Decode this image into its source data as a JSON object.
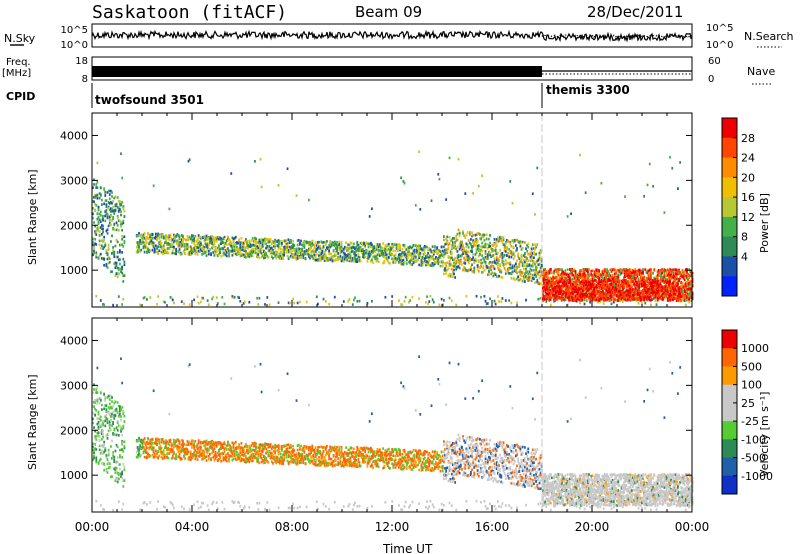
{
  "header": {
    "station": "Saskatoon (fitACF)",
    "beam": "Beam 09",
    "date": "28/Dec/2011"
  },
  "strip_labels": {
    "nsky": "N.Sky",
    "nsky_ticks": [
      "10^5",
      "10^0"
    ],
    "freq": "Freq.",
    "freq_unit": "[MHz]",
    "freq_ticks": [
      "18",
      "8"
    ],
    "cpid": "CPID",
    "nsearch": "N.Search",
    "nsearch_ticks": [
      "10^5",
      "10^0"
    ],
    "nave": "Nave",
    "nave_ticks": [
      "60",
      "0"
    ]
  },
  "cpid_segments": [
    {
      "name": "twofsound 3501",
      "start_hour": 0,
      "end_hour": 18
    },
    {
      "name": "themis 3300",
      "start_hour": 18,
      "end_hour": 24
    }
  ],
  "colors": {
    "power_scale": [
      "#0022ff",
      "#1c4fa8",
      "#2e8b57",
      "#44b04a",
      "#b8c832",
      "#f0c000",
      "#ff8c00",
      "#ff4500",
      "#ee0000"
    ],
    "velocity_scale": [
      "#1030c8",
      "#2060a8",
      "#2e8b57",
      "#55cc33",
      "#c8c8c8",
      "#c8c8c8",
      "#ff9900",
      "#ff6600",
      "#ee0000"
    ]
  },
  "chart_data": [
    {
      "type": "heatmap",
      "name": "power",
      "xlabel": "",
      "ylabel": "Slant Range [km]",
      "xlim": [
        0,
        24
      ],
      "ylim": [
        180,
        4500
      ],
      "yticks": [
        "4000",
        "3000",
        "2000",
        "1000"
      ],
      "xticks": [],
      "colorbar_label": "Power [dB]",
      "colorbar_ticks": [
        "28",
        "24",
        "20",
        "16",
        "12",
        "8",
        "4"
      ]
    },
    {
      "type": "heatmap",
      "name": "velocity",
      "xlabel": "Time UT",
      "ylabel": "Slant Range [km]",
      "xlim": [
        0,
        24
      ],
      "ylim": [
        180,
        4500
      ],
      "yticks": [
        "4000",
        "3000",
        "2000",
        "1000"
      ],
      "xticks": [
        "00:00",
        "04:00",
        "08:00",
        "12:00",
        "16:00",
        "20:00",
        "00:00"
      ],
      "colorbar_label": "Velocity [m s⁻¹]",
      "colorbar_ticks": [
        "1000",
        "500",
        "100",
        "25",
        "-25",
        "-100",
        "-500",
        "-1000"
      ]
    }
  ]
}
